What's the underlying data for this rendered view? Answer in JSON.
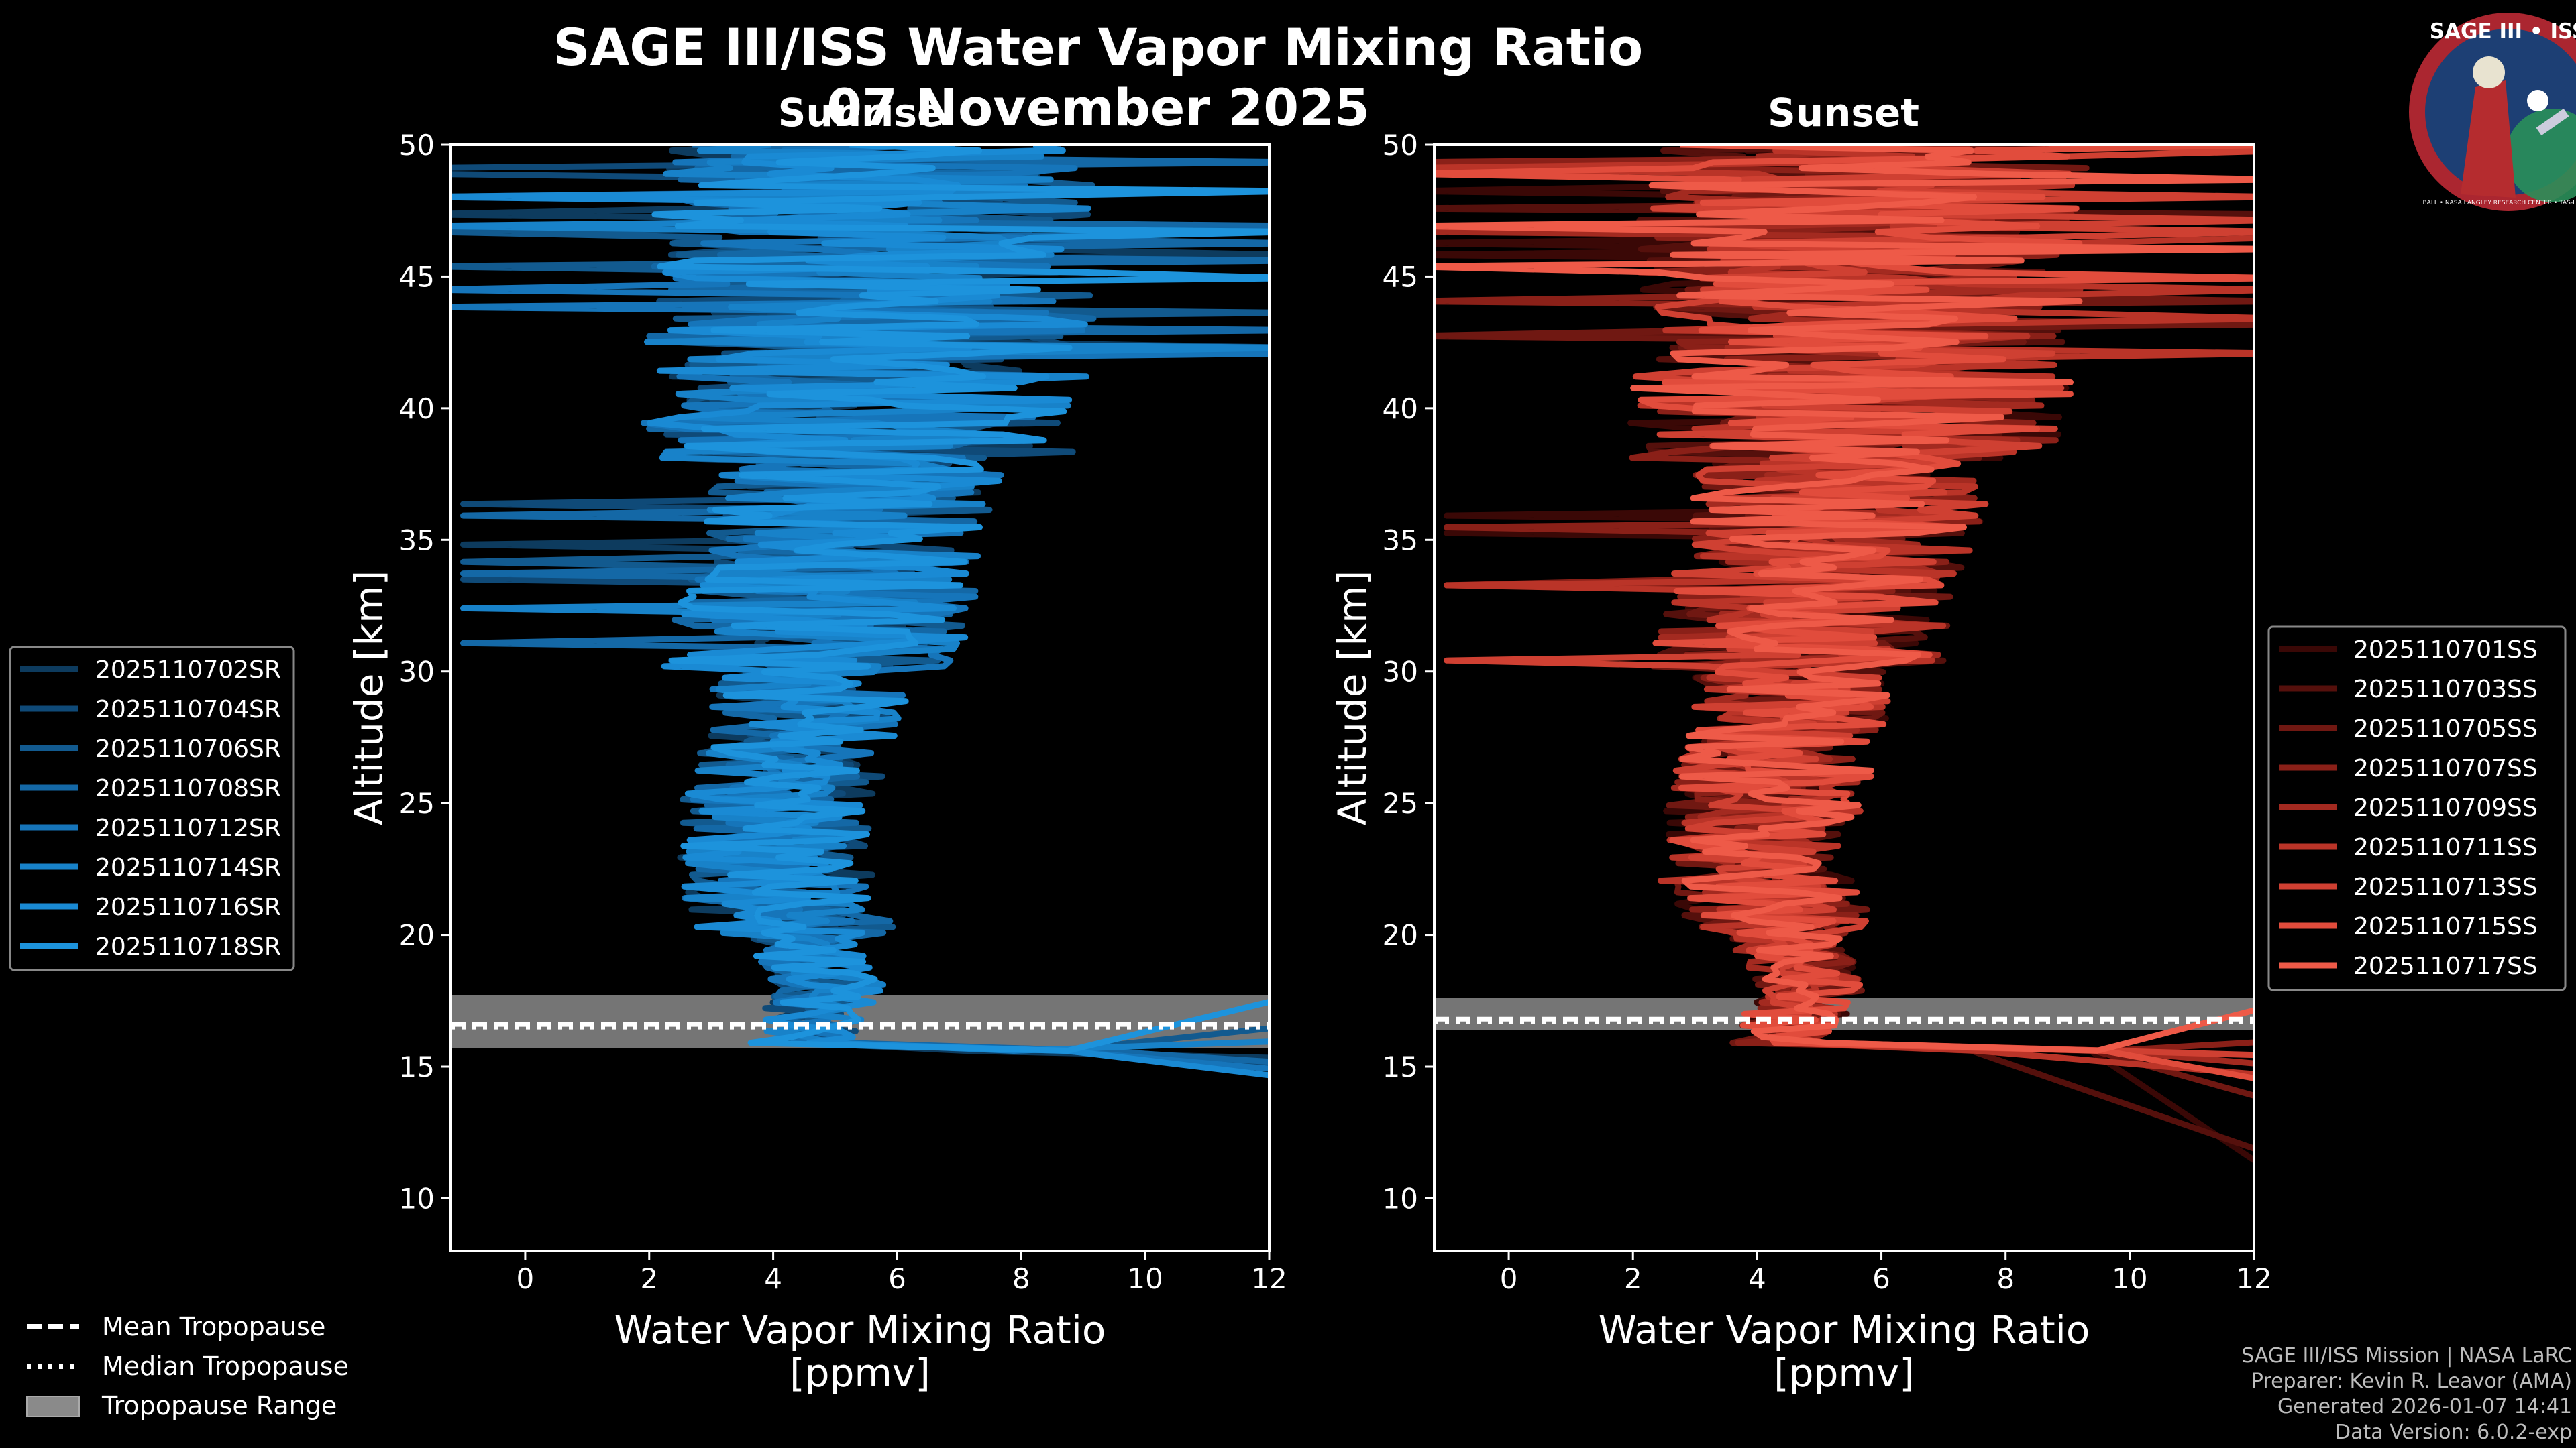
{
  "chart_data": {
    "type": "line",
    "title": "SAGE III/ISS Water Vapor Mixing Ratio",
    "date": "07 November 2025",
    "panels": [
      {
        "id": "sunrise",
        "title": "Sunrise",
        "xlabel_line1": "Water Vapor Mixing Ratio",
        "xlabel_line2": "[ppmv]",
        "ylabel": "Altitude [km]",
        "xlim": [
          -1.2,
          12
        ],
        "ylim": [
          8,
          50
        ],
        "xticks": [
          0,
          2,
          4,
          6,
          8,
          10,
          12
        ],
        "yticks": [
          10,
          15,
          20,
          25,
          30,
          35,
          40,
          45,
          50
        ],
        "tropopause": {
          "mean": 16.6,
          "median": 16.5,
          "range": [
            15.7,
            17.7
          ]
        },
        "legend_position": "left-outside",
        "series": [
          {
            "name": "2025110702SR",
            "color": "#0d3b5e",
            "low_alt": 15.3
          },
          {
            "name": "2025110704SR",
            "color": "#0f4a78",
            "low_alt": 15.0
          },
          {
            "name": "2025110706SR",
            "color": "#125a8f",
            "low_alt": 16.6
          },
          {
            "name": "2025110708SR",
            "color": "#1468a6",
            "low_alt": 15.1
          },
          {
            "name": "2025110712SR",
            "color": "#1675ba",
            "low_alt": 14.8
          },
          {
            "name": "2025110714SR",
            "color": "#1882c9",
            "low_alt": 16.0
          },
          {
            "name": "2025110716SR",
            "color": "#1a8ad4",
            "low_alt": 14.5
          },
          {
            "name": "2025110718SR",
            "color": "#1d93dc",
            "low_alt": 17.8
          }
        ]
      },
      {
        "id": "sunset",
        "title": "Sunset",
        "xlabel_line1": "Water Vapor Mixing Ratio",
        "xlabel_line2": "[ppmv]",
        "ylabel": "Altitude [km]",
        "xlim": [
          -1.2,
          12
        ],
        "ylim": [
          8,
          50
        ],
        "xticks": [
          0,
          2,
          4,
          6,
          8,
          10,
          12
        ],
        "yticks": [
          10,
          15,
          20,
          25,
          30,
          35,
          40,
          45,
          50
        ],
        "tropopause": {
          "mean": 16.8,
          "median": 16.7,
          "range": [
            16.4,
            17.6
          ]
        },
        "legend_position": "right-outside",
        "series": [
          {
            "name": "2025110701SS",
            "color": "#3a0806",
            "low_alt": 10.5
          },
          {
            "name": "2025110703SS",
            "color": "#55100c",
            "low_alt": 11.4
          },
          {
            "name": "2025110705SS",
            "color": "#701812",
            "low_alt": 13.5
          },
          {
            "name": "2025110707SS",
            "color": "#8a2018",
            "low_alt": 16.0
          },
          {
            "name": "2025110709SS",
            "color": "#a32a20",
            "low_alt": 15.0
          },
          {
            "name": "2025110711SS",
            "color": "#ba3428",
            "low_alt": 14.6
          },
          {
            "name": "2025110713SS",
            "color": "#cf4032",
            "low_alt": 15.4
          },
          {
            "name": "2025110715SS",
            "color": "#e14c3c",
            "low_alt": 14.3
          },
          {
            "name": "2025110717SS",
            "color": "#ee5a48",
            "low_alt": 17.5
          }
        ]
      }
    ],
    "profile_shape": [
      [
        16,
        4.4
      ],
      [
        18,
        4.9
      ],
      [
        20,
        4.4
      ],
      [
        22,
        4.0
      ],
      [
        25,
        4.1
      ],
      [
        28,
        4.5
      ],
      [
        30,
        4.6
      ],
      [
        33,
        4.9
      ],
      [
        36,
        5.3
      ],
      [
        40,
        5.5
      ],
      [
        44,
        5.6
      ],
      [
        48,
        5.7
      ],
      [
        50,
        5.8
      ]
    ],
    "tropo_legend": [
      "Mean Tropopause",
      "Median Tropopause",
      "Tropopause Range"
    ]
  },
  "logo": {
    "title": "SAGE III • ISS",
    "tag": "BALL • NASA LANGLEY RESEARCH CENTER • TAS-I • ESA"
  },
  "footer": {
    "mission": "SAGE III/ISS Mission | NASA LaRC",
    "preparer": "Preparer: Kevin R. Leavor (AMA)",
    "generated": "Generated 2026-01-07 14:41",
    "version": "Data Version: 6.0.2-exp"
  },
  "colors": {
    "background": "#000000",
    "tropo_band": "#8a8a8a"
  }
}
